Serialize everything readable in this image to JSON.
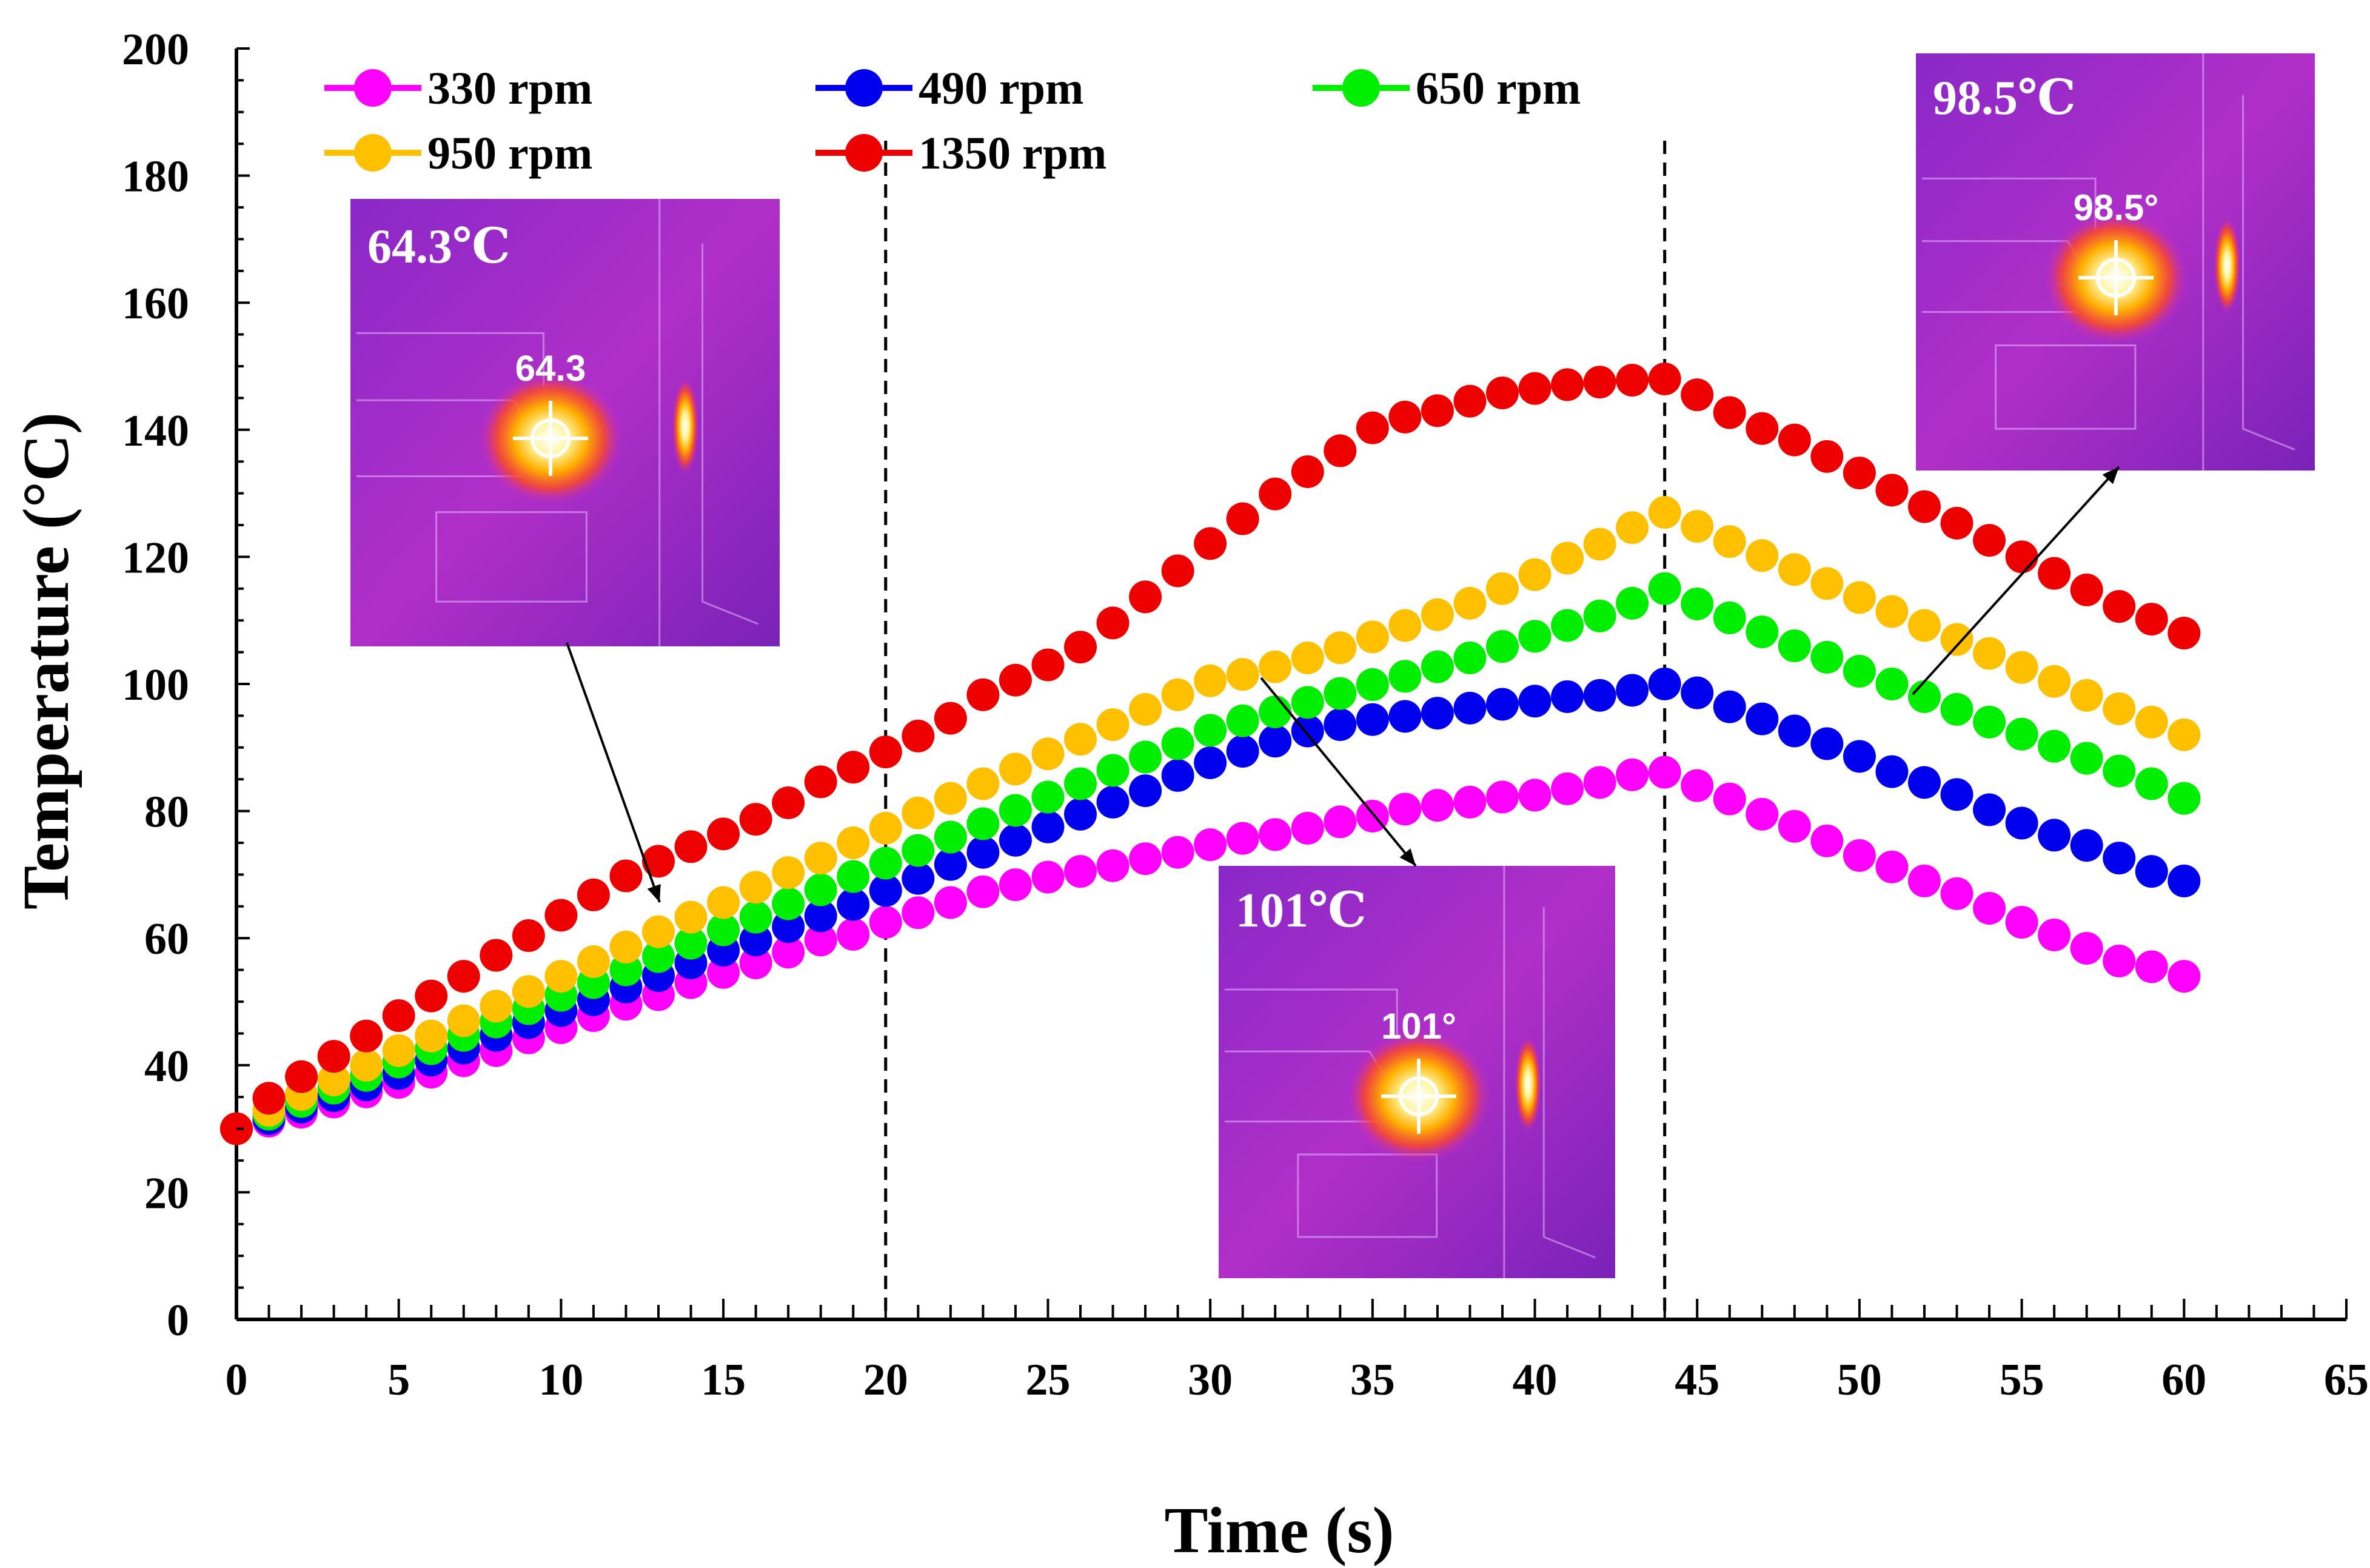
{
  "chart_data": {
    "type": "scatter",
    "title": "",
    "xlabel": "Time (s)",
    "ylabel": "Temperature (°C)",
    "xlim": [
      0,
      65
    ],
    "ylim": [
      0,
      200
    ],
    "xticks": [
      "0",
      "5",
      "10",
      "15",
      "20",
      "25",
      "30",
      "35",
      "40",
      "45",
      "50",
      "55",
      "60",
      "65"
    ],
    "yticks": [
      "0",
      "20",
      "40",
      "60",
      "80",
      "100",
      "120",
      "140",
      "160",
      "180",
      "200"
    ],
    "x": [
      0,
      1,
      2,
      3,
      4,
      5,
      6,
      7,
      8,
      9,
      10,
      11,
      12,
      13,
      14,
      15,
      16,
      17,
      18,
      19,
      20,
      21,
      22,
      23,
      24,
      25,
      26,
      27,
      28,
      29,
      30,
      31,
      32,
      33,
      34,
      35,
      36,
      37,
      38,
      39,
      40,
      41,
      42,
      43,
      44,
      45,
      46,
      47,
      48,
      49,
      50,
      51,
      52,
      53,
      54,
      55,
      56,
      57,
      58,
      59,
      60
    ],
    "series": [
      {
        "name": "330 rpm",
        "color": "#ff00ff",
        "values": [
          30,
          31.2,
          32.6,
          34.2,
          35.8,
          37.3,
          38.9,
          40.7,
          42.3,
          44.3,
          45.9,
          47.8,
          49.6,
          51.1,
          53,
          54.6,
          56.1,
          57.8,
          59.7,
          60.6,
          62.5,
          64,
          65.6,
          67.3,
          68.4,
          69.6,
          70.5,
          71.4,
          72.5,
          73.5,
          74.7,
          75.7,
          76.3,
          77.3,
          78.3,
          79.2,
          80.3,
          80.9,
          81.4,
          82.2,
          82.5,
          83.5,
          84.5,
          85.7,
          86.1,
          84,
          81.9,
          79.5,
          77.6,
          75.3,
          73,
          71.2,
          69,
          67,
          64.7,
          62.5,
          60.5,
          58.4,
          56.4,
          55.5,
          54
        ]
      },
      {
        "name": "490 rpm",
        "color": "#0000ee",
        "values": [
          30,
          31.6,
          33.4,
          35.2,
          36.9,
          38.7,
          40.8,
          42.7,
          44.7,
          46.7,
          48.6,
          50.3,
          52.3,
          54.1,
          56.1,
          58.1,
          59.7,
          61.8,
          63.5,
          65.3,
          67.5,
          69.4,
          71.6,
          73.5,
          75.4,
          77.5,
          79.5,
          81.4,
          83.2,
          85.6,
          87.6,
          89.4,
          91,
          92.6,
          93.6,
          94.4,
          94.9,
          95.4,
          96.2,
          96.8,
          97.3,
          98,
          98.2,
          99,
          100,
          98.6,
          96.4,
          94.5,
          92.6,
          90.6,
          88.6,
          86.2,
          84.5,
          82.6,
          80.2,
          78.1,
          76.2,
          74.6,
          72.6,
          70.5,
          69
        ]
      },
      {
        "name": "650 rpm",
        "color": "#00ee00",
        "values": [
          30,
          32.3,
          34.3,
          36.4,
          38.4,
          40.5,
          42.6,
          44.7,
          46.8,
          48.9,
          51,
          53,
          55,
          57.1,
          59.2,
          61.3,
          63.3,
          65.4,
          67.6,
          69.7,
          71.8,
          73.8,
          75.9,
          78,
          80.1,
          82.2,
          84.3,
          86.4,
          88.5,
          90.6,
          92.7,
          94.2,
          95.6,
          97.1,
          98.5,
          99.9,
          101.2,
          102.7,
          104.1,
          105.9,
          107.5,
          109.2,
          110.7,
          112.7,
          115,
          112.6,
          110.4,
          108.2,
          106,
          104.2,
          102,
          100,
          98,
          96,
          94,
          92.1,
          90.2,
          88.3,
          86.3,
          84.3,
          82
        ]
      },
      {
        "name": "950 rpm",
        "color": "#ffc000",
        "values": [
          30,
          32.9,
          35.4,
          37.7,
          40,
          42.3,
          44.6,
          47,
          49.3,
          51.6,
          54,
          56.3,
          58.6,
          61,
          63.3,
          65.6,
          68,
          70.3,
          72.6,
          75,
          77.3,
          79.7,
          82,
          84.3,
          86.6,
          89,
          91.3,
          93.6,
          96,
          98.3,
          100.5,
          101.5,
          102.7,
          104.1,
          105.7,
          107.4,
          109.2,
          110.9,
          112.7,
          115,
          117.2,
          119.8,
          122,
          124.6,
          127,
          124.8,
          122.4,
          120.2,
          118,
          115.8,
          113.6,
          111.4,
          109.2,
          107,
          104.8,
          102.6,
          100.4,
          98.2,
          96.1,
          94,
          92
        ]
      },
      {
        "name": "1350 rpm",
        "color": "#ee0000",
        "values": [
          30,
          34.8,
          38.2,
          41.4,
          44.6,
          47.8,
          50.9,
          54,
          57.3,
          60.4,
          63.6,
          66.8,
          69.8,
          72.1,
          74.4,
          76.4,
          78.7,
          81.3,
          84.6,
          86.9,
          89.3,
          91.8,
          94.6,
          98.3,
          100.6,
          103,
          105.8,
          109.6,
          113.7,
          117.8,
          122.1,
          126,
          129.9,
          133.4,
          136.7,
          140.3,
          142,
          143,
          144.5,
          145.8,
          146.5,
          147.1,
          147.5,
          147.8,
          148,
          145.5,
          142.7,
          140.2,
          138.4,
          135.8,
          133.2,
          130.5,
          127.9,
          125.3,
          122.6,
          120,
          117.4,
          114.8,
          112.2,
          110.2,
          108
        ]
      }
    ],
    "reference_lines": [
      {
        "x": 20,
        "style": "dashed"
      },
      {
        "x": 44,
        "style": "dashed"
      }
    ],
    "legend": {
      "placement": "top-left",
      "columns": 3
    },
    "insets": [
      {
        "label": "64.3℃",
        "readout": "64.3",
        "points_to": {
          "x": 13.5,
          "y": 61
        }
      },
      {
        "label": "101℃",
        "readout": "101°",
        "points_to": {
          "x": 32,
          "y": 100
        }
      },
      {
        "label": "98.5℃",
        "readout": "98.5°",
        "points_to": {
          "x": 52,
          "y": 98
        }
      }
    ]
  }
}
